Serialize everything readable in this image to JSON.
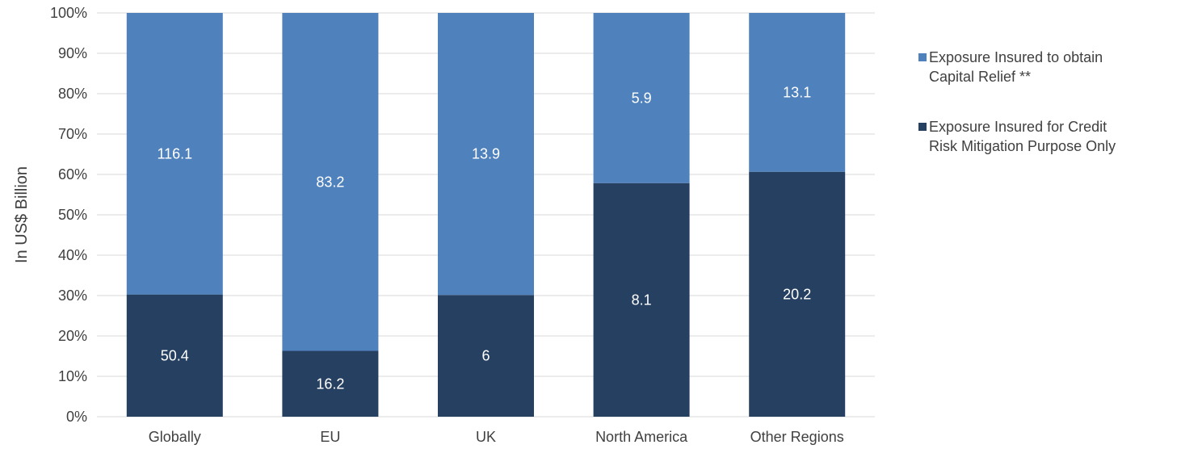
{
  "chart_data": {
    "type": "bar",
    "stacked": "percent",
    "categories": [
      "Globally",
      "EU",
      "UK",
      "North America",
      "Other Regions"
    ],
    "series": [
      {
        "name": "Exposure Insured for Credit Risk Mitigation Purpose Only",
        "legend_lines": [
          "Exposure Insured for Credit",
          "Risk Mitigation Purpose Only"
        ],
        "color": "#264061",
        "values": [
          50.4,
          16.2,
          6,
          8.1,
          20.2
        ]
      },
      {
        "name": "Exposure Insured to obtain Capital Relief **",
        "legend_lines": [
          "Exposure Insured to obtain",
          "Capital Relief **"
        ],
        "color": "#4f81bd",
        "values": [
          116.1,
          83.2,
          13.9,
          5.9,
          13.1
        ]
      }
    ],
    "ylabel": "In US$ Billion",
    "ylim": [
      0,
      100
    ],
    "yticks": [
      "0%",
      "10%",
      "20%",
      "30%",
      "40%",
      "50%",
      "60%",
      "70%",
      "80%",
      "90%",
      "100%"
    ],
    "grid": true,
    "legend_position": "right",
    "label_color": "#ffffff"
  }
}
